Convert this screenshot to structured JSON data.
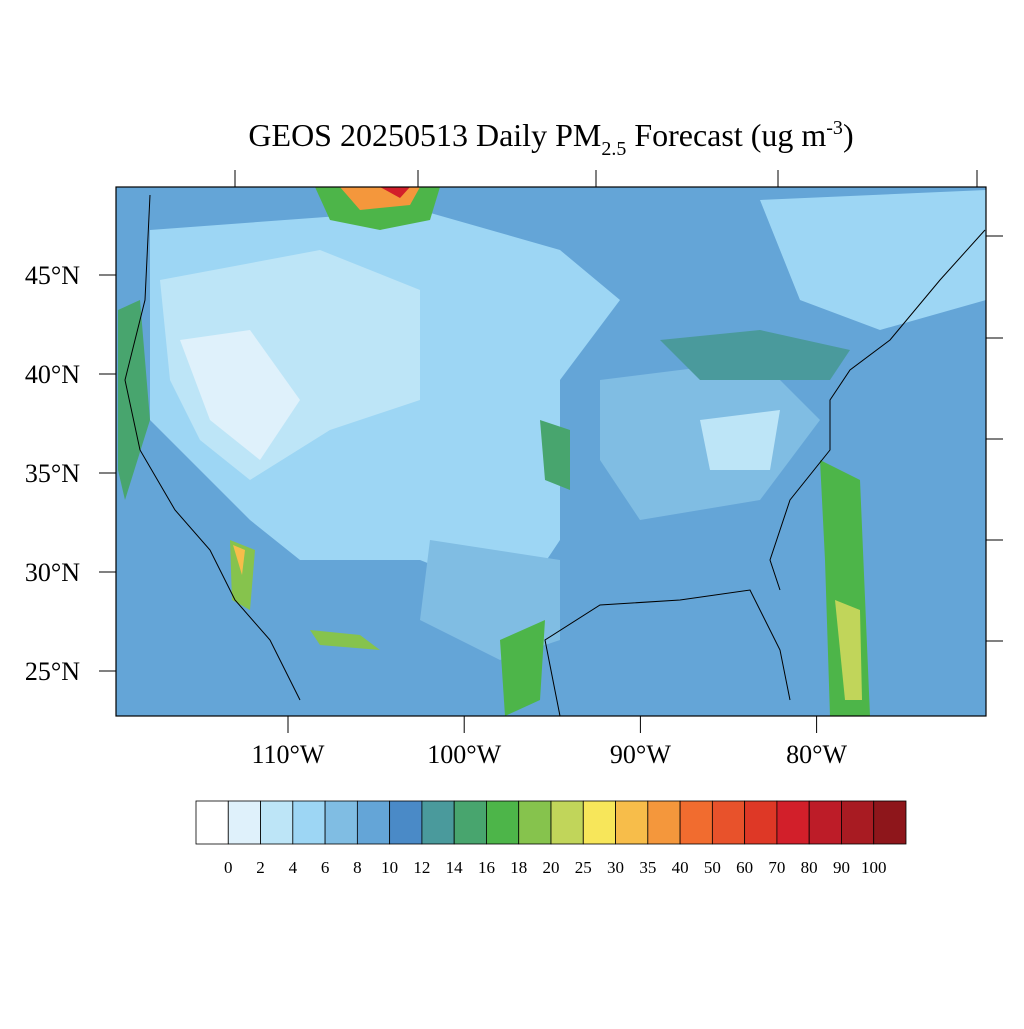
{
  "title": {
    "lead": "GEOS 20250513 Daily PM",
    "sub": "2.5",
    "mid": " Forecast (ug m",
    "sup": "-3",
    "end": ")"
  },
  "lat_ticks": [
    {
      "value": 45,
      "label": "45°N"
    },
    {
      "value": 40,
      "label": "40°N"
    },
    {
      "value": 35,
      "label": "35°N"
    },
    {
      "value": 30,
      "label": "30°N"
    },
    {
      "value": 25,
      "label": "25°N"
    }
  ],
  "lon_ticks": [
    {
      "value": -110,
      "label": "110°W"
    },
    {
      "value": -100,
      "label": "100°W"
    },
    {
      "value": -90,
      "label": "90°W"
    },
    {
      "value": -80,
      "label": "80°W"
    }
  ],
  "colorbar": {
    "levels": [
      0,
      2,
      4,
      6,
      8,
      10,
      12,
      14,
      16,
      18,
      20,
      25,
      30,
      35,
      40,
      50,
      60,
      70,
      80,
      90,
      100
    ],
    "colors": [
      "#ffffff",
      "#dff1fb",
      "#bde5f7",
      "#9dd6f4",
      "#80bde3",
      "#64a5d7",
      "#4a8ac7",
      "#4a9a9c",
      "#48a56e",
      "#4db549",
      "#86c34d",
      "#c1d55a",
      "#f7e65a",
      "#f7bd4a",
      "#f4973c",
      "#f16c2f",
      "#e8522b",
      "#de3826",
      "#d21f2a",
      "#bd1c28",
      "#a81b22",
      "#8e161b"
    ]
  }
}
